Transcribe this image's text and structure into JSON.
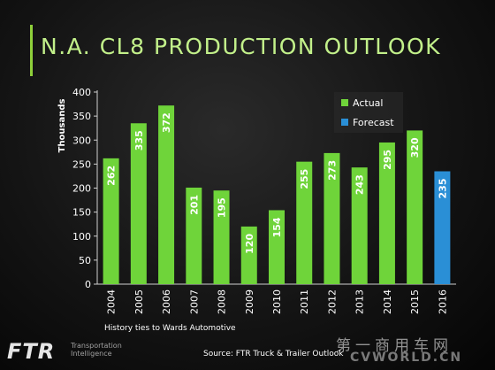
{
  "title": "N.A. CL8 PRODUCTION OUTLOOK",
  "colors": {
    "actual": "#6fd43a",
    "forecast": "#2a8fd6",
    "title": "#c2f08a",
    "accent": "#8ecf3a"
  },
  "chart_data": {
    "type": "bar",
    "title": "N.A. CL8 PRODUCTION OUTLOOK",
    "ylabel": "Thousands",
    "xlabel": "",
    "ylim": [
      0,
      400
    ],
    "yticks": [
      0,
      50,
      100,
      150,
      200,
      250,
      300,
      350,
      400
    ],
    "categories": [
      "2004",
      "2005",
      "2006",
      "2007",
      "2008",
      "2009",
      "2010",
      "2011",
      "2012",
      "2013",
      "2014",
      "2015",
      "2016"
    ],
    "series": [
      {
        "name": "Actual",
        "values": [
          262,
          335,
          372,
          201,
          195,
          120,
          154,
          255,
          273,
          243,
          295,
          320,
          null
        ]
      },
      {
        "name": "Forecast",
        "values": [
          null,
          null,
          null,
          null,
          null,
          null,
          null,
          null,
          null,
          null,
          null,
          null,
          235
        ]
      }
    ],
    "legend_position": "top-right",
    "grid": false
  },
  "footnote": "History ties to Wards Automotive",
  "source": "Source: FTR Truck & Trailer Outlook",
  "logo": {
    "name": "FTR",
    "sub": "Transportation Intelligence"
  },
  "watermark": {
    "line1": "第一商用车网",
    "line2": "CVWORLD.CN"
  }
}
